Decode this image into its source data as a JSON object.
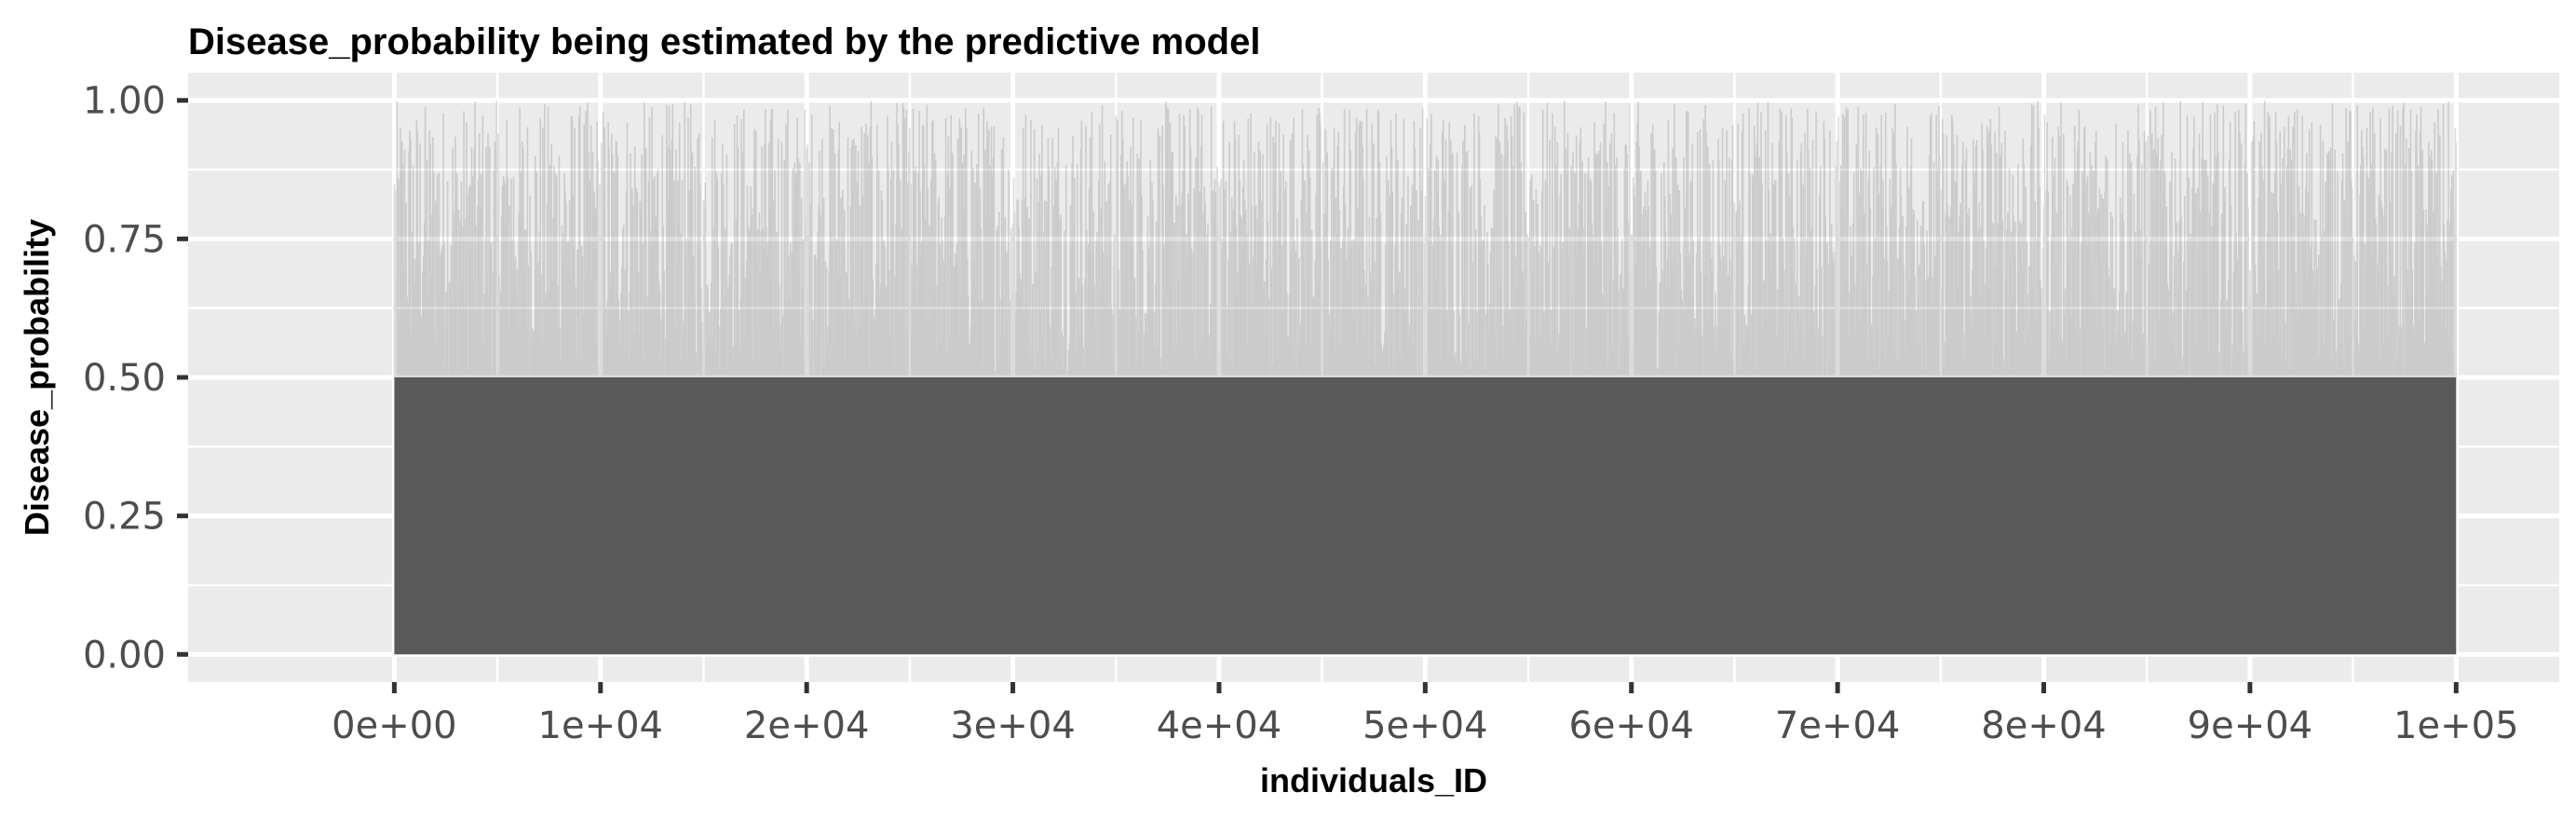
{
  "chart_data": {
    "type": "bar",
    "title": "Disease_probability being estimated by the predictive model",
    "xlabel": "individuals_ID",
    "ylabel": "Disease_probability",
    "xlim": [
      -10000,
      105000
    ],
    "ylim": [
      -0.05,
      1.05
    ],
    "x_ticks": [
      0,
      10000,
      20000,
      30000,
      40000,
      50000,
      60000,
      70000,
      80000,
      90000,
      100000
    ],
    "x_tick_labels": [
      "0e+00",
      "1e+04",
      "2e+04",
      "3e+04",
      "4e+04",
      "5e+04",
      "6e+04",
      "7e+04",
      "8e+04",
      "9e+04",
      "1e+05"
    ],
    "y_ticks": [
      0,
      0.25,
      0.5,
      0.75,
      1.0
    ],
    "y_tick_labels": [
      "0.00",
      "0.25",
      "0.50",
      "0.75",
      "1.00"
    ],
    "grid": true,
    "legend": "none",
    "series": [
      {
        "n_points": 100000,
        "x_range": [
          1,
          100000
        ],
        "solid_region_max": 0.5,
        "value_range": [
          0.5,
          1.0
        ]
      }
    ],
    "colors": {
      "panel": "#ebebeb",
      "grid": "#ffffff",
      "bar": "#595959",
      "tick": "#333333"
    }
  }
}
